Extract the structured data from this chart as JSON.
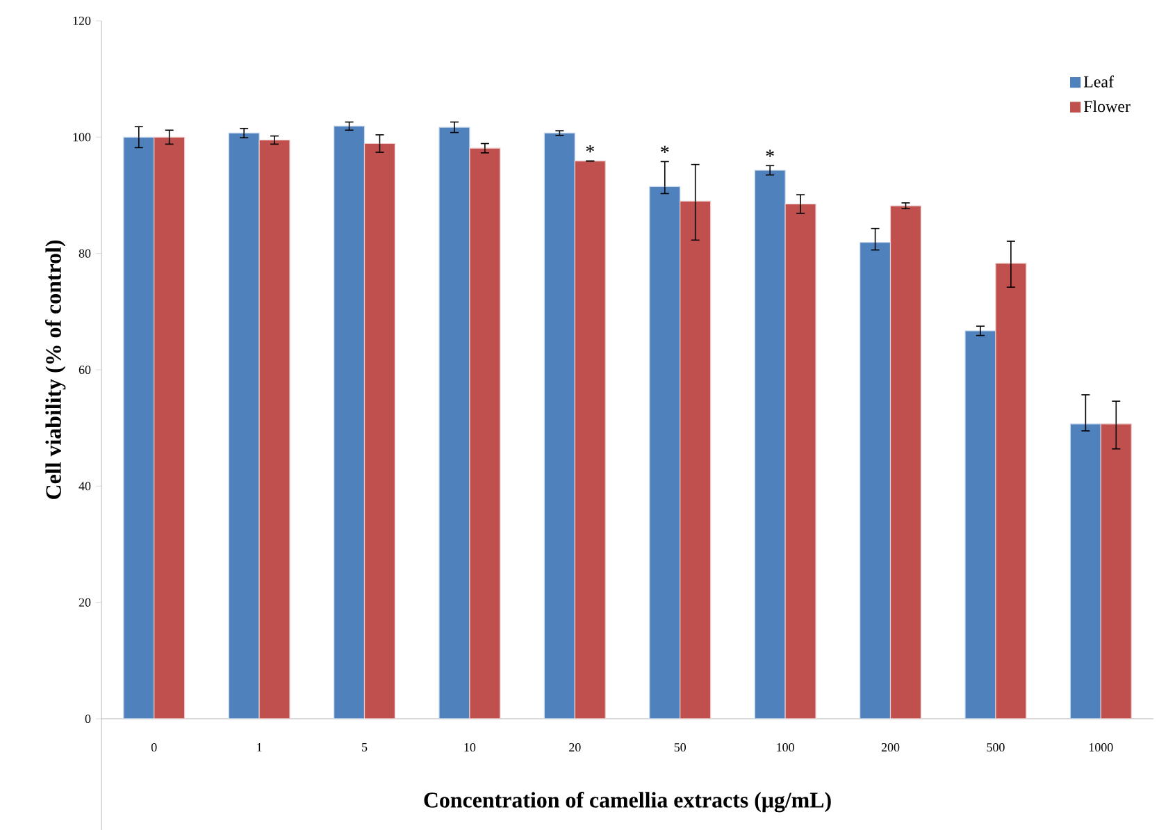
{
  "chart_data": {
    "type": "bar",
    "xlabel": "Concentration of camellia extracts (μg/mL)",
    "ylabel": "Cell viability (% of control)",
    "categories": [
      "0",
      "1",
      "5",
      "10",
      "20",
      "50",
      "100",
      "200",
      "500",
      "1000"
    ],
    "series": [
      {
        "name": "Leaf",
        "color": "#4f81bd",
        "values": [
          100,
          100.7,
          101.9,
          101.7,
          100.7,
          91.5,
          94.3,
          81.9,
          66.7,
          50.7
        ],
        "errors": [
          1.8,
          0.8,
          0.7,
          0.9,
          0.4,
          [
            90.3,
            95.8
          ],
          0.8,
          [
            80.6,
            84.3
          ],
          0.8,
          [
            49.5,
            55.7
          ]
        ]
      },
      {
        "name": "Flower",
        "color": "#c0504d",
        "values": [
          100,
          99.5,
          98.9,
          98.1,
          95.9,
          89,
          88.5,
          88.2,
          78.3,
          50.7
        ],
        "errors": [
          1.2,
          0.7,
          1.5,
          0.8,
          null,
          [
            82.3,
            95.3
          ],
          1.6,
          0.5,
          [
            74.2,
            82.1
          ],
          [
            46.4,
            54.6
          ]
        ]
      }
    ],
    "ylim": [
      0,
      120
    ],
    "yticks": [
      0,
      20,
      40,
      60,
      80,
      100,
      120
    ],
    "legend": "top right",
    "annotations": [
      {
        "text": "*",
        "x": "20",
        "y": 95.9
      },
      {
        "text": "*",
        "x": "50",
        "y": 91.5
      },
      {
        "text": "*",
        "x": "100",
        "y": 94.3
      }
    ]
  }
}
